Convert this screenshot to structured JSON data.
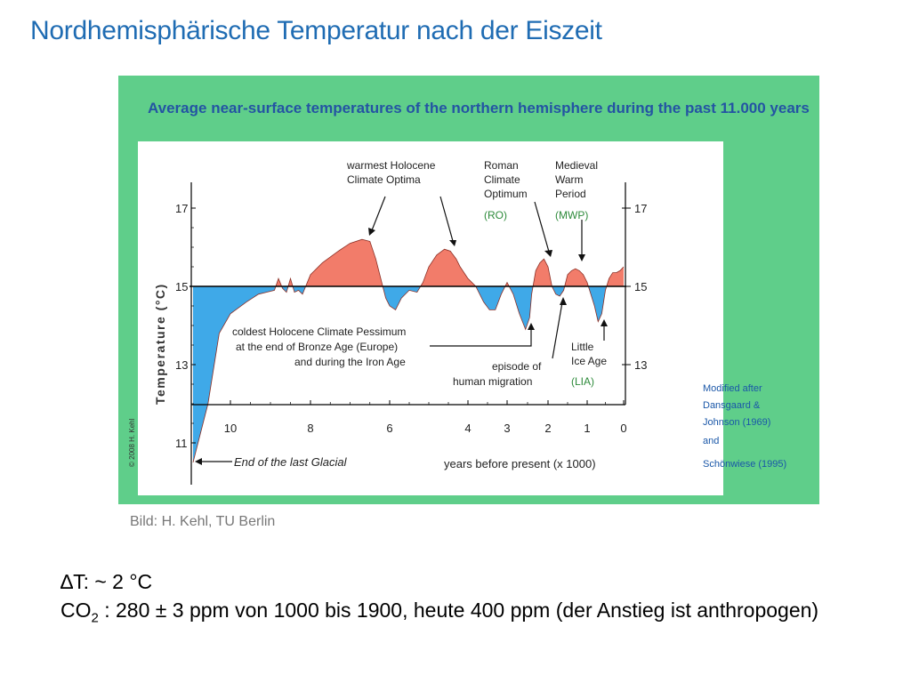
{
  "slide": {
    "title": "Nordhemisphärische Temperatur nach der Eiszeit",
    "caption": "Bild: H. Kehl, TU Berlin",
    "note_delta_t": "∆T: ~ 2 °C",
    "note_co2_prefix": "CO",
    "note_co2_sub": "2",
    "note_co2_rest": " : 280 ± 3 ppm von 1000 bis 1900, heute 400 ppm (der Anstieg ist anthropogen)"
  },
  "colors": {
    "title": "#1f6cb3",
    "frame_green": "#5fce8a",
    "warm_fill": "#f27c6a",
    "cold_fill": "#3fa9e8",
    "heading_blue": "#2454a3",
    "note_blue": "#1a57a8",
    "abbrev_green": "#2e8b3b"
  },
  "chart_data": {
    "type": "area",
    "title": "Average near-surface temperatures of the northern hemisphere during the past 11.000 years",
    "ylabel": "Temperature (°C)",
    "xlabel": "years before present (x 1000)",
    "ylim": [
      10.5,
      17.3
    ],
    "baseline": 15,
    "yticks": [
      "17",
      "15",
      "13",
      "11"
    ],
    "ytick_values": [
      17,
      15,
      13,
      11
    ],
    "xticks": [
      "10",
      "8",
      "6",
      "4",
      "3",
      "2",
      "1",
      "0"
    ],
    "xtick_values": [
      10,
      8,
      6,
      4,
      3,
      2,
      1,
      0
    ],
    "copyright": "© 2008 H. Kehl",
    "series": [
      {
        "x": [
          11.0,
          10.6,
          10.3,
          10.0,
          9.6,
          9.3,
          9.1,
          8.9,
          8.8,
          8.7,
          8.6,
          8.5,
          8.4,
          8.3,
          8.2,
          8.0,
          7.7,
          7.3,
          7.0,
          6.7,
          6.5,
          6.35,
          6.2,
          6.1,
          6.0,
          5.85,
          5.7,
          5.5,
          5.3,
          5.15,
          5.0,
          4.8,
          4.6,
          4.45,
          4.3,
          4.2,
          4.0,
          3.8,
          3.6,
          3.45,
          3.3,
          3.15,
          3.0,
          2.85,
          2.7,
          2.55,
          2.45,
          2.4,
          2.3,
          2.2,
          2.1,
          2.0,
          1.9,
          1.8,
          1.7,
          1.6,
          1.5,
          1.4,
          1.3,
          1.2,
          1.1,
          1.0,
          0.9,
          0.8,
          0.7,
          0.6,
          0.5,
          0.4,
          0.3,
          0.2,
          0.1,
          0.0
        ],
        "y": [
          10.5,
          12.0,
          13.8,
          14.3,
          14.6,
          14.8,
          14.85,
          14.9,
          15.2,
          14.95,
          14.85,
          15.2,
          14.85,
          14.9,
          14.8,
          15.3,
          15.6,
          15.9,
          16.1,
          16.2,
          16.15,
          15.7,
          15.1,
          14.7,
          14.5,
          14.4,
          14.7,
          14.9,
          14.85,
          15.1,
          15.5,
          15.8,
          15.95,
          15.9,
          15.7,
          15.5,
          15.2,
          15.0,
          14.6,
          14.4,
          14.4,
          14.8,
          15.1,
          14.8,
          14.3,
          13.9,
          14.2,
          14.8,
          15.4,
          15.6,
          15.7,
          15.5,
          15.0,
          14.8,
          14.75,
          14.9,
          15.3,
          15.4,
          15.45,
          15.4,
          15.3,
          15.1,
          14.8,
          14.5,
          14.1,
          14.3,
          14.9,
          15.2,
          15.35,
          15.35,
          15.4,
          15.5
        ]
      }
    ],
    "annotations": {
      "warmest": [
        "warmest Holocene",
        "Climate Optima"
      ],
      "roman": [
        "Roman",
        "Climate",
        "Optimum"
      ],
      "roman_abbr": "(RO)",
      "medieval": [
        "Medieval",
        "Warm",
        "Period"
      ],
      "medieval_abbr": "(MWP)",
      "coldest": [
        "coldest Holocene Climate Pessimum",
        "at the end of Bronze Age (Europe)",
        "and during the Iron Age"
      ],
      "migration": [
        "episode of",
        "human migration"
      ],
      "lia": [
        "Little",
        "Ice Age"
      ],
      "lia_abbr": "(LIA)",
      "glacial": "End of the last Glacial",
      "modified": [
        "Modified after",
        "Dansgaard &",
        "Johnson (1969)",
        "and",
        "Schönwiese (1995)"
      ]
    }
  }
}
